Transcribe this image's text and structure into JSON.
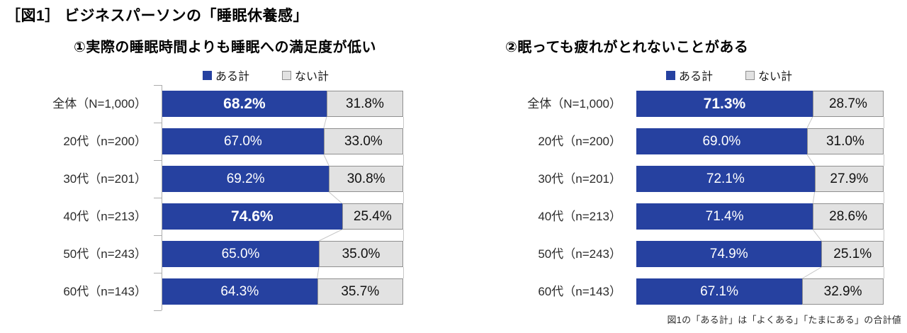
{
  "header": {
    "title": "［図1］ ビジネスパーソンの「睡眠休養感」"
  },
  "footnote": "図1の「ある計」は「よくある」「たまにある」の合計値",
  "colors": {
    "aru_blue": "#2641A0",
    "nai_fill": "#E2E2E2",
    "nai_border": "#8F8F8F",
    "axis_gray": "#ACACAC",
    "connector_gray": "#C8C8C8"
  },
  "chart_data": [
    {
      "type": "bar",
      "orientation": "horizontal-stacked",
      "title": "①実際の睡眠時間よりも睡眠への満足度が低い",
      "categories": [
        "全体（N=1,000）",
        "20代（n=200）",
        "30代（n=201）",
        "40代（n=213）",
        "50代（n=243）",
        "60代（n=143）"
      ],
      "series": [
        {
          "name": "ある計",
          "values": [
            68.2,
            67.0,
            69.2,
            74.6,
            65.0,
            64.3
          ]
        },
        {
          "name": "ない計",
          "values": [
            31.8,
            33.0,
            30.8,
            25.4,
            35.0,
            35.7
          ]
        }
      ],
      "emphasized_rows": [
        0,
        3
      ],
      "xlim": [
        0,
        100
      ],
      "legend_position": "top",
      "axis_ticks": true,
      "grid": false
    },
    {
      "type": "bar",
      "orientation": "horizontal-stacked",
      "title": "②眠っても疲れがとれないことがある",
      "categories": [
        "全体（N=1,000）",
        "20代（n=200）",
        "30代（n=201）",
        "40代（n=213）",
        "50代（n=243）",
        "60代（n=143）"
      ],
      "series": [
        {
          "name": "ある計",
          "values": [
            71.3,
            69.0,
            72.1,
            71.4,
            74.9,
            67.1
          ]
        },
        {
          "name": "ない計",
          "values": [
            28.7,
            31.0,
            27.9,
            28.6,
            25.1,
            32.9
          ]
        }
      ],
      "emphasized_rows": [
        0
      ],
      "xlim": [
        0,
        100
      ],
      "legend_position": "top",
      "axis_ticks": false,
      "grid": false
    }
  ]
}
